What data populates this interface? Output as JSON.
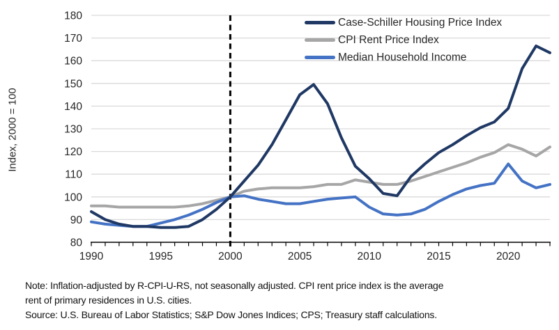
{
  "chart_data": {
    "type": "line",
    "ylabel": "Index, 2000 = 100",
    "ylim": [
      80,
      180
    ],
    "ytick_step": 10,
    "xlim": [
      1990,
      2023
    ],
    "xticks_labeled": [
      1990,
      1995,
      2000,
      2005,
      2010,
      2015,
      2020
    ],
    "annotation_line_x": 2000,
    "grid": "horizontal",
    "legend_position": "top-right",
    "x": [
      1990,
      1991,
      1992,
      1993,
      1994,
      1995,
      1996,
      1997,
      1998,
      1999,
      2000,
      2001,
      2002,
      2003,
      2004,
      2005,
      2006,
      2007,
      2008,
      2009,
      2010,
      2011,
      2012,
      2013,
      2014,
      2015,
      2016,
      2017,
      2018,
      2019,
      2020,
      2021,
      2022,
      2023
    ],
    "series": [
      {
        "name": "Case-Schiller Housing Price Index",
        "color": "#1f3864",
        "values": [
          93.5,
          90,
          88,
          87,
          87,
          86.5,
          86.5,
          87,
          90,
          94.5,
          100,
          107,
          114,
          123,
          134,
          145,
          149.5,
          141,
          126,
          113.5,
          108,
          101.5,
          100.5,
          109,
          114.5,
          119.5,
          123,
          127,
          130.5,
          133,
          139,
          156.5,
          166.5,
          163.5
        ]
      },
      {
        "name": "CPI Rent Price Index",
        "color": "#a6a6a6",
        "values": [
          96,
          96,
          95.5,
          95.5,
          95.5,
          95.5,
          95.5,
          96,
          97,
          98.5,
          100,
          102.5,
          103.5,
          104,
          104,
          104,
          104.5,
          105.5,
          105.5,
          107.5,
          106.5,
          105.5,
          105.5,
          107,
          109,
          111,
          113,
          115,
          117.5,
          119.5,
          123,
          121,
          118,
          122
        ]
      },
      {
        "name": "Median Household Income",
        "color": "#4472c4",
        "values": [
          89,
          88,
          87.5,
          87,
          87,
          88.5,
          90,
          92,
          94.5,
          97.5,
          100,
          100.5,
          99,
          98,
          97,
          97,
          98,
          99,
          99.5,
          100,
          95.5,
          92.5,
          92,
          92.5,
          94.5,
          98,
          101,
          103.5,
          105,
          106,
          114.5,
          107,
          104,
          105.5
        ]
      }
    ],
    "axis_colors": {
      "grid": "#d9d9d9",
      "axis_line": "#000000",
      "tick_label": "#262626",
      "dashed_line": "#000000"
    }
  },
  "notes": {
    "note_line1": "Note: Inflation-adjusted by R-CPI-U-RS, not seasonally adjusted. CPI rent price index is the average",
    "note_line2": "rent of primary residences in U.S. cities.",
    "source_line": "Source: U.S. Bureau of Labor Statistics; S&P Dow Jones Indices; CPS; Treasury staff calculations."
  }
}
